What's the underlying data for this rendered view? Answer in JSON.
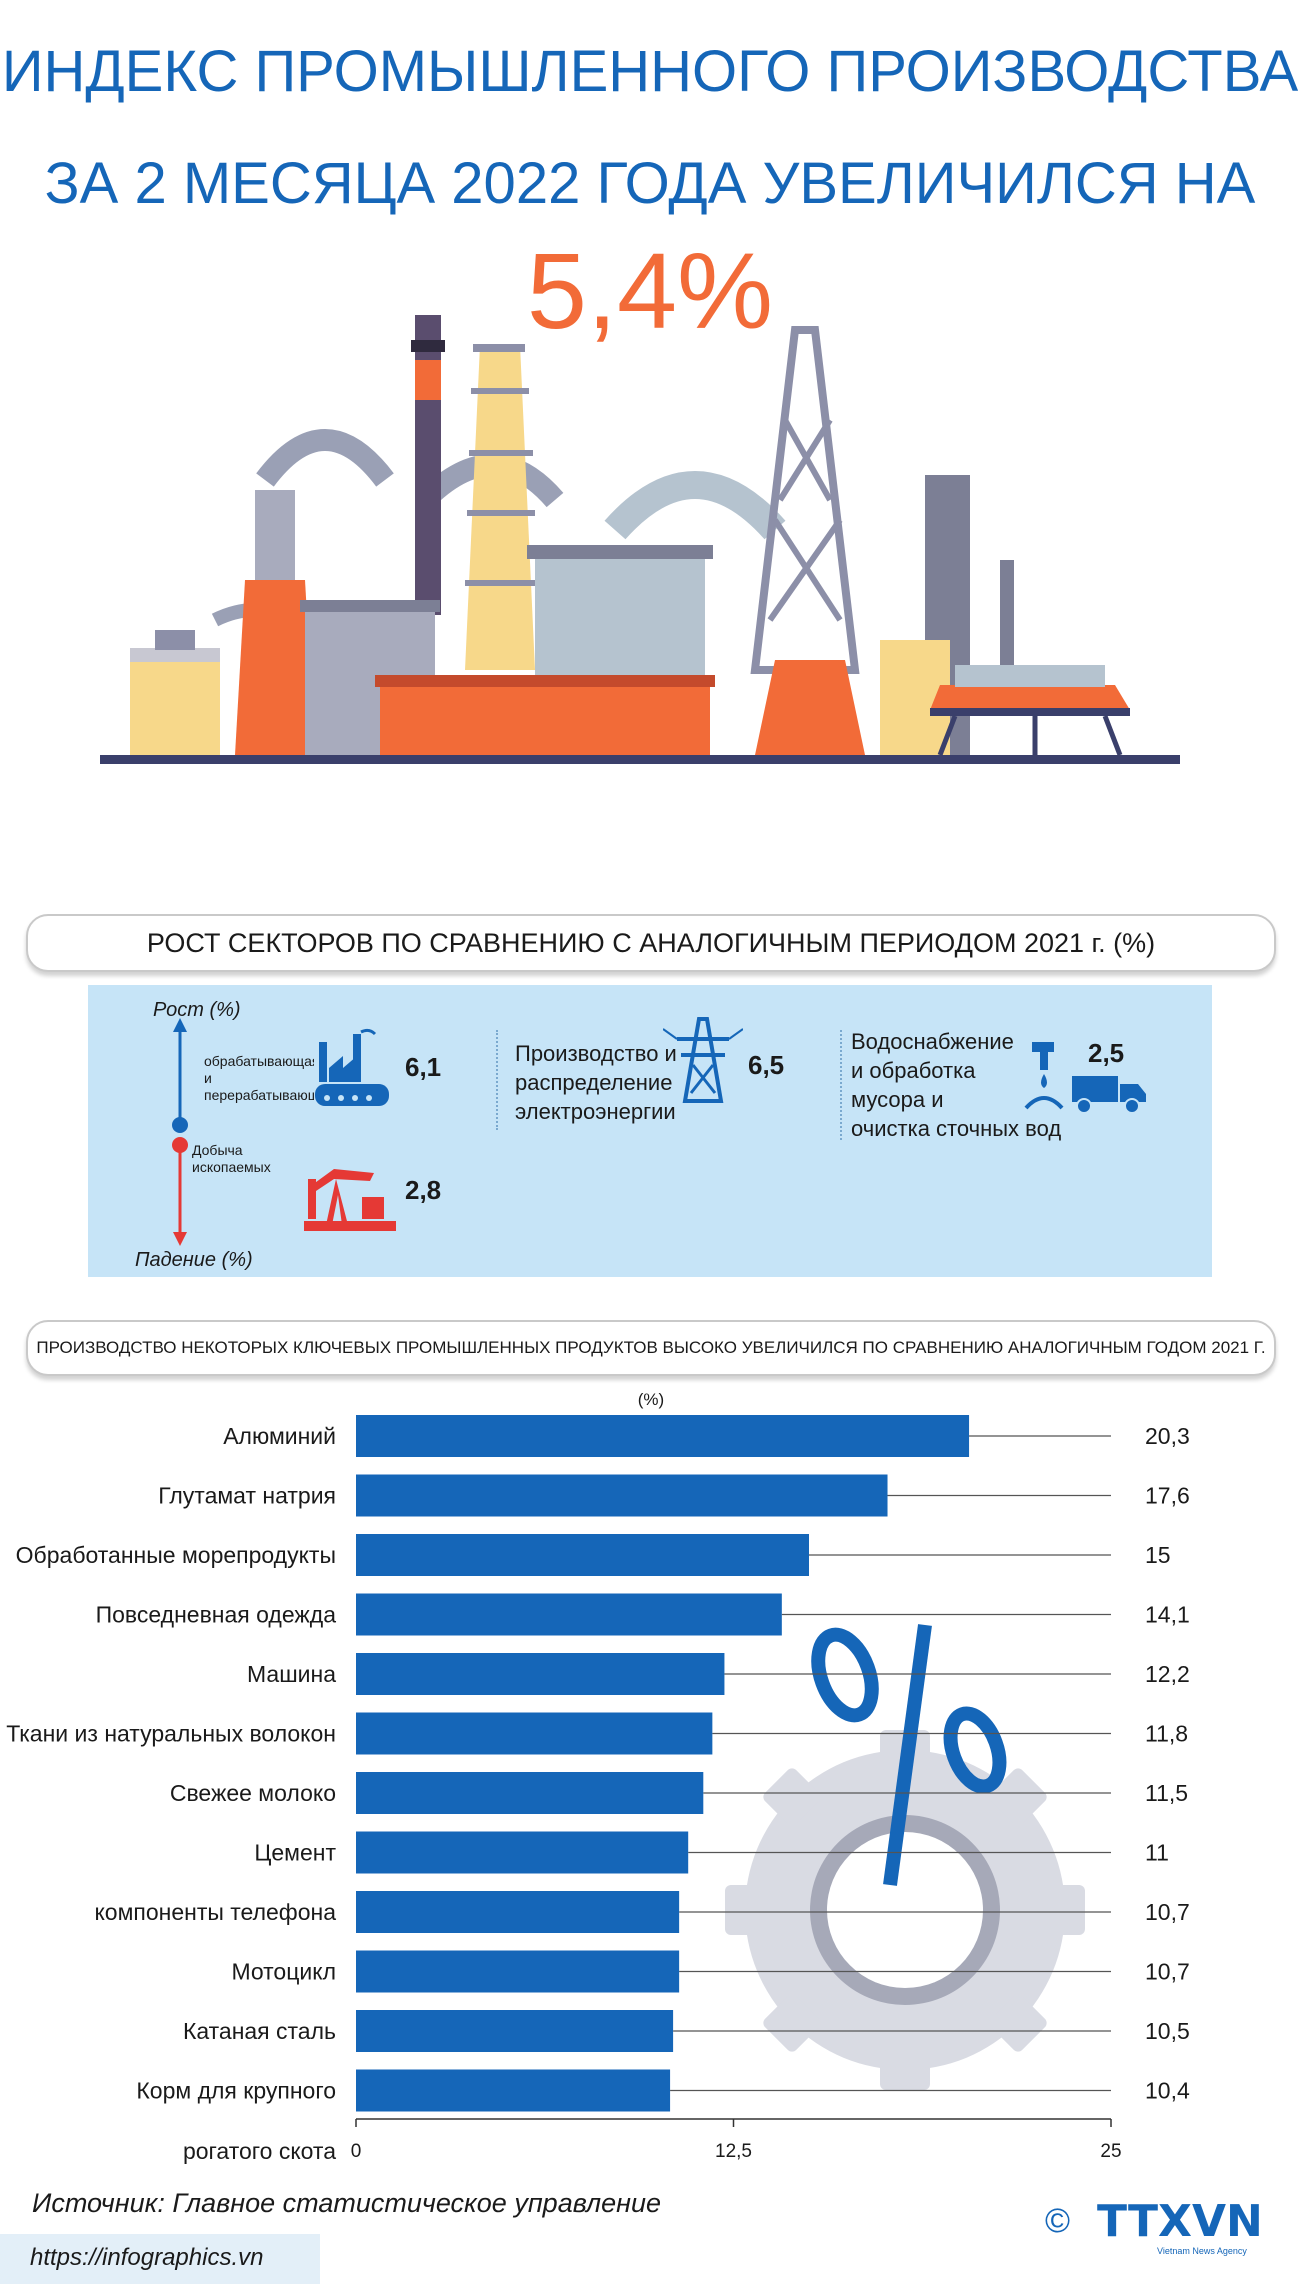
{
  "header": {
    "title_line1": "ИНДЕКС ПРОМЫШЛЕННОГО ПРОИЗВОДСТВА",
    "title_line2": "ЗА 2 МЕСЯЦА 2022 ГОДА УВЕЛИЧИЛСЯ НА",
    "headline_value": "5,4%"
  },
  "sectors": {
    "heading": "РОСТ СЕКТОРОВ ПО СРАВНЕНИЮ С АНАЛОГИЧНЫМ ПЕРИОДОМ 2021 г. (%)",
    "axis_up_label": "Рост (%)",
    "axis_down_label": "Падение (%)",
    "items": [
      {
        "label_line1": "обрабатывающая",
        "label_line2": "и",
        "label_line3": "перерабатывающ",
        "value": "6,1",
        "icon": "factory-icon"
      },
      {
        "label_line1": "Добыча",
        "label_line2": "ископаемых",
        "value": "2,8",
        "icon": "oil-pump-icon"
      },
      {
        "label_line1": "Производство и",
        "label_line2": "распределение",
        "label_line3": "электроэнергии",
        "value": "6,5",
        "icon": "power-tower-icon"
      },
      {
        "label_line1": "Водоснабжение",
        "label_line2": "и обработка",
        "label_line3": "мусора и",
        "label_line4": "очистка сточных вод",
        "value": "2,5",
        "icon": "water-truck-icon"
      }
    ],
    "colors": {
      "growth": "#1566b8",
      "decline": "#e53935"
    }
  },
  "chart_heading": "ПРОИЗВОДСТВО НЕКОТОРЫХ КЛЮЧЕВЫХ ПРОМЫШЛЕННЫХ ПРОДУКТОВ ВЫСОКО УВЕЛИЧИЛСЯ ПО СРАВНЕНИЮ АНАЛОГИЧНЫМ ГОДОМ 2021 Г. (%)",
  "chart_data": {
    "type": "bar",
    "orientation": "horizontal",
    "categories": [
      "Алюминий",
      "Глутамат натрия",
      "Обработанные морепродукты",
      "Повседневная одежда",
      "Машина",
      "Ткани из натуральных волокон",
      "Свежее молоко",
      "Цемент",
      "компоненты телефона",
      "Мотоцикл",
      "Катаная сталь",
      "Корм для крупного"
    ],
    "extra_category_line": "рогатого скота",
    "values": [
      20.3,
      17.6,
      15,
      14.1,
      12.2,
      11.8,
      11.5,
      11,
      10.7,
      10.7,
      10.5,
      10.4
    ],
    "value_labels": [
      "20,3",
      "17,6",
      "15",
      "14,1",
      "12,2",
      "11,8",
      "11,5",
      "11",
      "10,7",
      "10,7",
      "10,5",
      "10,4"
    ],
    "xlim": [
      0,
      25
    ],
    "xticks": [
      "0",
      "12,5",
      "25"
    ],
    "xtick_values": [
      0,
      12.5,
      25
    ],
    "bar_color": "#1566b8",
    "grid": false
  },
  "footer": {
    "source": "Источник: Главное статистическое управление",
    "url": "https://infographics.vn",
    "copyright": "©",
    "logo_text": "TTXVN",
    "logo_subtext": "Vietnam News Agency"
  }
}
